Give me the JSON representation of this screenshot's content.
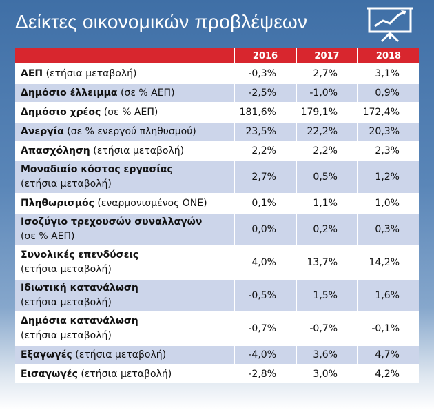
{
  "header": {
    "title": "Δείκτες οικονομικών προβλέψεων"
  },
  "table": {
    "columns": [
      "2016",
      "2017",
      "2018"
    ],
    "rows": [
      {
        "label": "ΑΕΠ",
        "note": "(ετήσια μεταβολή)",
        "values": [
          "-0,3%",
          "2,7%",
          "3,1%"
        ]
      },
      {
        "label": "Δημόσιο έλλειμμα",
        "note": "(σε % ΑΕΠ)",
        "values": [
          "-2,5%",
          "-1,0%",
          "0,9%"
        ]
      },
      {
        "label": "Δημόσιο χρέος",
        "note": "(σε % ΑΕΠ)",
        "values": [
          "181,6%",
          "179,1%",
          "172,4%"
        ]
      },
      {
        "label": "Ανεργία",
        "note": "(σε % ενεργού πληθυσμού)",
        "values": [
          "23,5%",
          "22,2%",
          "20,3%"
        ]
      },
      {
        "label": "Απασχόληση",
        "note": "(ετήσια μεταβολή)",
        "values": [
          "2,2%",
          "2,2%",
          "2,3%"
        ]
      },
      {
        "label": "Μοναδιαίο κόστος εργασίας",
        "note": "(ετήσια μεταβολή)",
        "values": [
          "2,7%",
          "0,5%",
          "1,2%"
        ]
      },
      {
        "label": "Πληθωρισμός",
        "note": "(εναρμονισμένος ΟΝΕ)",
        "values": [
          "0,1%",
          "1,1%",
          "1,0%"
        ]
      },
      {
        "label": "Ισοζύγιο τρεχουσών συναλλαγών",
        "note": "(σε % ΑΕΠ)",
        "values": [
          "0,0%",
          "0,2%",
          "0,3%"
        ]
      },
      {
        "label": "Συνολικές επενδύσεις",
        "note": "(ετήσια μεταβολή)",
        "values": [
          "4,0%",
          "13,7%",
          "14,2%"
        ]
      },
      {
        "label": "Ιδιωτική κατανάλωση",
        "note": "(ετήσια μεταβολή)",
        "values": [
          "-0,5%",
          "1,5%",
          "1,6%"
        ]
      },
      {
        "label": "Δημόσια κατανάλωση",
        "note": "(ετήσια μεταβολή)",
        "values": [
          "-0,7%",
          "-0,7%",
          "-0,1%"
        ]
      },
      {
        "label": "Εξαγωγές",
        "note": "(ετήσια μεταβολή)",
        "values": [
          "-4,0%",
          "3,6%",
          "4,7%"
        ]
      },
      {
        "label": "Εισαγωγές",
        "note": "(ετήσια μεταβολή)",
        "values": [
          "-2,8%",
          "3,0%",
          "4,2%"
        ]
      }
    ]
  }
}
